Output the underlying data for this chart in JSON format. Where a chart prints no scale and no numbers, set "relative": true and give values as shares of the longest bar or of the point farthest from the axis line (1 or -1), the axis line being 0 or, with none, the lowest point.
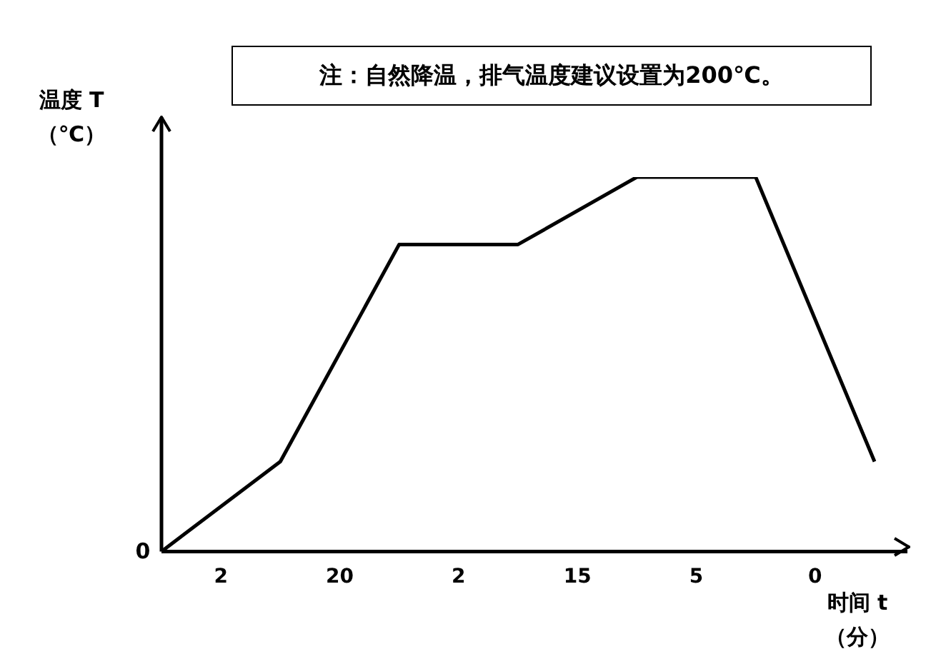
{
  "chart_data": {
    "type": "line",
    "relative": true,
    "categories": [
      null,
      "2",
      null,
      "20",
      null,
      "2",
      null,
      "15",
      null,
      "5",
      null,
      "0",
      null
    ],
    "series": [
      {
        "color": "#000000",
        "values": [
          0,
          null,
          0.24,
          null,
          0.82,
          null,
          0.82,
          null,
          1,
          null,
          1,
          null,
          0.24
        ]
      }
    ],
    "xlabel": "时间 t\n（分）",
    "ylabel": "温度 T\n（℃）",
    "annotations": [
      "注：自然降温，排气温度建议设置为200℃。",
      "0"
    ],
    "grid": false,
    "legend": false,
    "marker": "none",
    "line_style": "solid"
  }
}
